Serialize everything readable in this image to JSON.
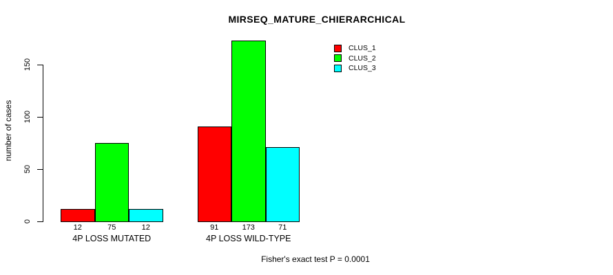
{
  "chart_data": {
    "type": "bar",
    "title": "MIRSEQ_MATURE_CHIERARCHICAL",
    "ylabel": "number of cases",
    "xlabel": "",
    "annotation": "Fisher's exact test P = 0.0001",
    "categories": [
      "4P LOSS MUTATED",
      "4P LOSS WILD-TYPE"
    ],
    "series": [
      {
        "name": "CLUS_1",
        "color": "#ff0000",
        "values": [
          12,
          91
        ]
      },
      {
        "name": "CLUS_2",
        "color": "#00ff00",
        "values": [
          75,
          173
        ]
      },
      {
        "name": "CLUS_3",
        "color": "#00ffff",
        "values": [
          12,
          71
        ]
      }
    ],
    "yticks": [
      0,
      50,
      100,
      150
    ],
    "ylim": [
      0,
      173
    ],
    "bar_value_labels_shown": true,
    "grid": false,
    "legend_position": "top-right",
    "bar_border_color": "#000000",
    "text_color": "#000000",
    "background_color": "#ffffff"
  }
}
